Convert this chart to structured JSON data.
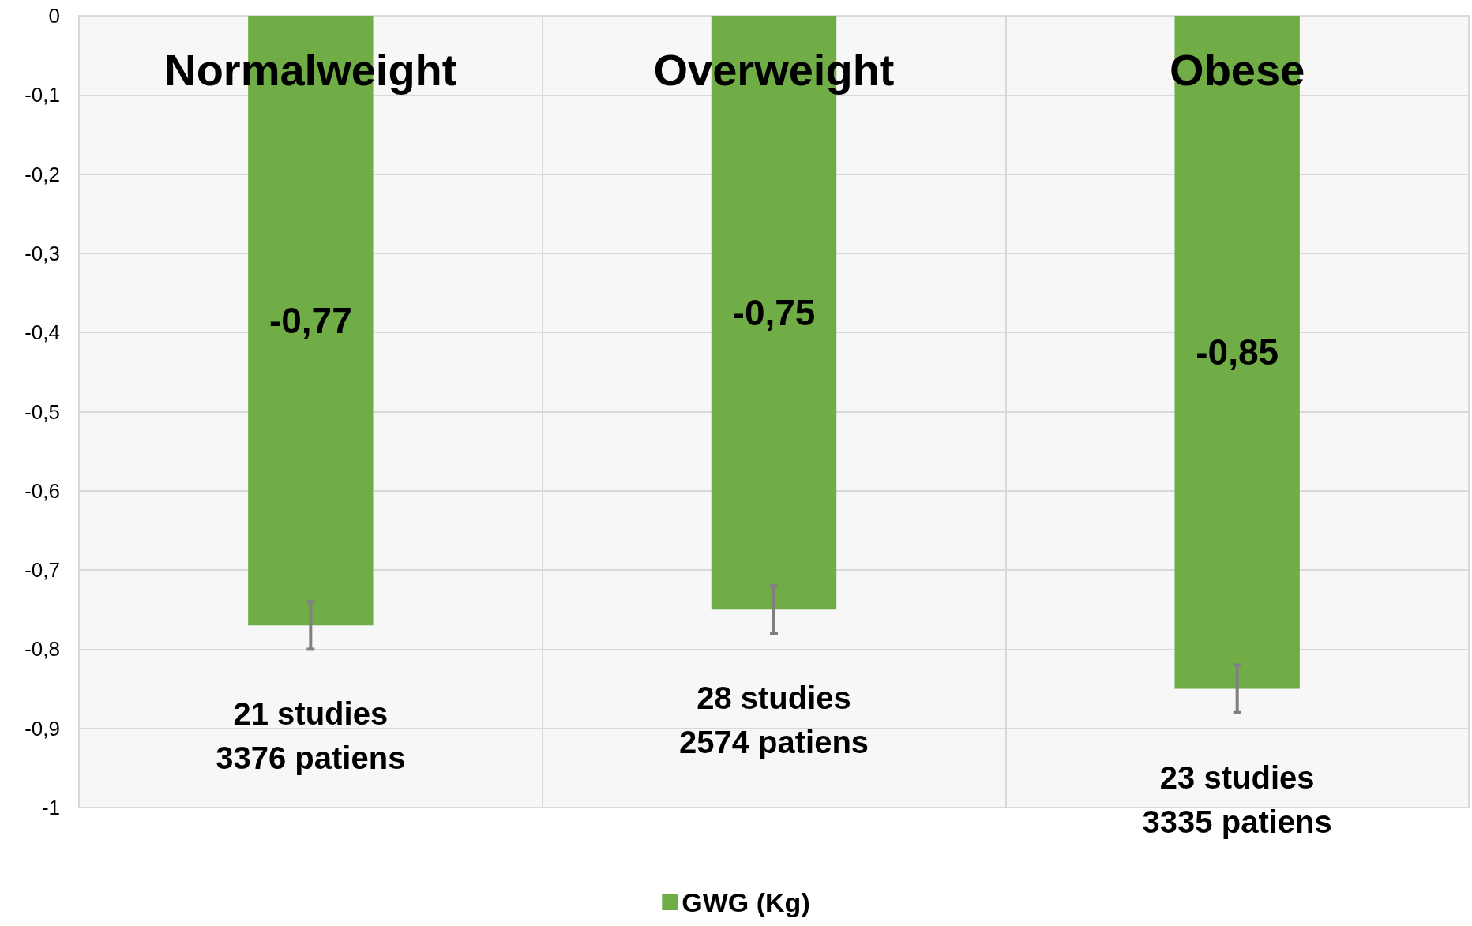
{
  "chart_data": {
    "type": "bar",
    "categories": [
      "Normalweight",
      "Overweight",
      "Obese"
    ],
    "series": [
      {
        "name": "GWG (Kg)",
        "color": "#70ad47",
        "values": [
          -0.77,
          -0.75,
          -0.85
        ],
        "errors": [
          0.03,
          0.03,
          0.03
        ],
        "value_labels": [
          "-0,77",
          "-0,75",
          "-0,85"
        ]
      }
    ],
    "ylim": [
      -1,
      0
    ],
    "yticks": [
      {
        "value": -1,
        "label": "-1"
      },
      {
        "value": -0.9,
        "label": "-0,9"
      },
      {
        "value": -0.8,
        "label": "-0,8"
      },
      {
        "value": -0.7,
        "label": "-0,7"
      },
      {
        "value": -0.6,
        "label": "-0,6"
      },
      {
        "value": -0.5,
        "label": "-0,5"
      },
      {
        "value": -0.4,
        "label": "-0,4"
      },
      {
        "value": -0.3,
        "label": "-0,3"
      },
      {
        "value": -0.2,
        "label": "-0,2"
      },
      {
        "value": -0.1,
        "label": "-0,1"
      },
      0
    ],
    "annotations": [
      "21 studies\n3376 patiens",
      "28 studies\n2574 patiens",
      "23 studies\n3335 patiens"
    ],
    "grid": true,
    "legend": "bottom"
  }
}
